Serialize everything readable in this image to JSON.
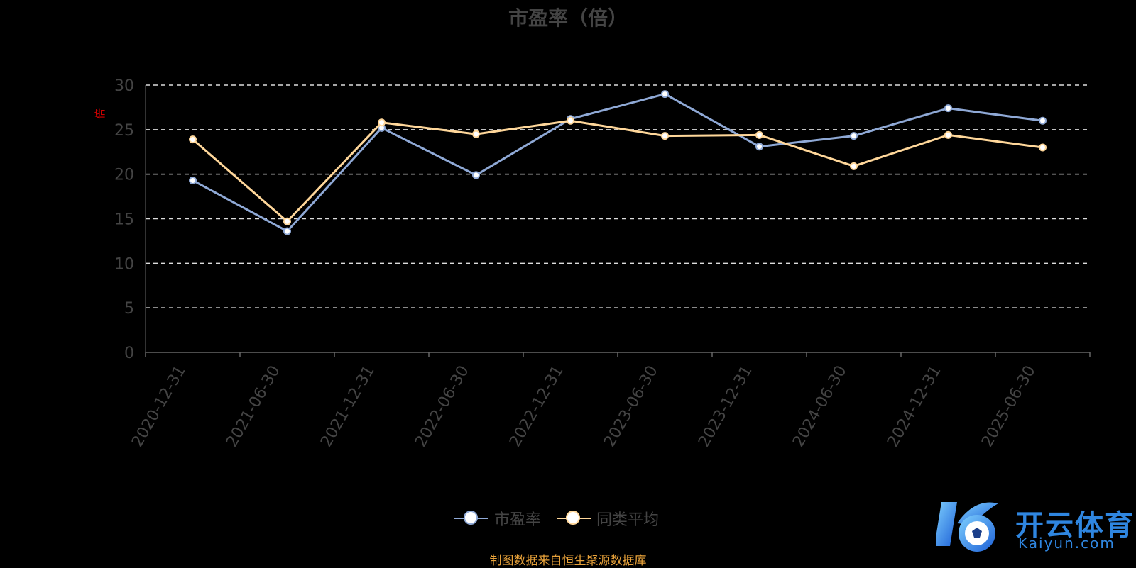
{
  "chart_data": {
    "type": "line",
    "title": "市盈率（倍）",
    "ylabel": "倍",
    "ylim": [
      0,
      30
    ],
    "yticks": [
      "0",
      "5",
      "10",
      "15",
      "20",
      "25",
      "30"
    ],
    "categories": [
      "2020-12-31",
      "2021-06-30",
      "2021-12-31",
      "2022-06-30",
      "2022-12-31",
      "2023-06-30",
      "2023-12-31",
      "2024-06-30",
      "2024-12-31",
      "2025-06-30"
    ],
    "series": [
      {
        "name": "市盈率",
        "color": "#8fa9d6",
        "values": [
          19.3,
          13.6,
          25.2,
          19.9,
          26.2,
          29.0,
          23.1,
          24.3,
          27.4,
          26.0
        ]
      },
      {
        "name": "同类平均",
        "color": "#ffd79a",
        "values": [
          23.9,
          14.7,
          25.8,
          24.5,
          26.0,
          24.3,
          24.4,
          20.9,
          24.4,
          23.0
        ]
      }
    ],
    "grid": true,
    "legend_position": "bottom-center"
  },
  "source_note": "制图数据来自恒生聚源数据库",
  "source_color": "#e8a23a",
  "logo": {
    "text": "开云体育",
    "sub": "Kaiyun.com",
    "color": "#2f86e0"
  }
}
